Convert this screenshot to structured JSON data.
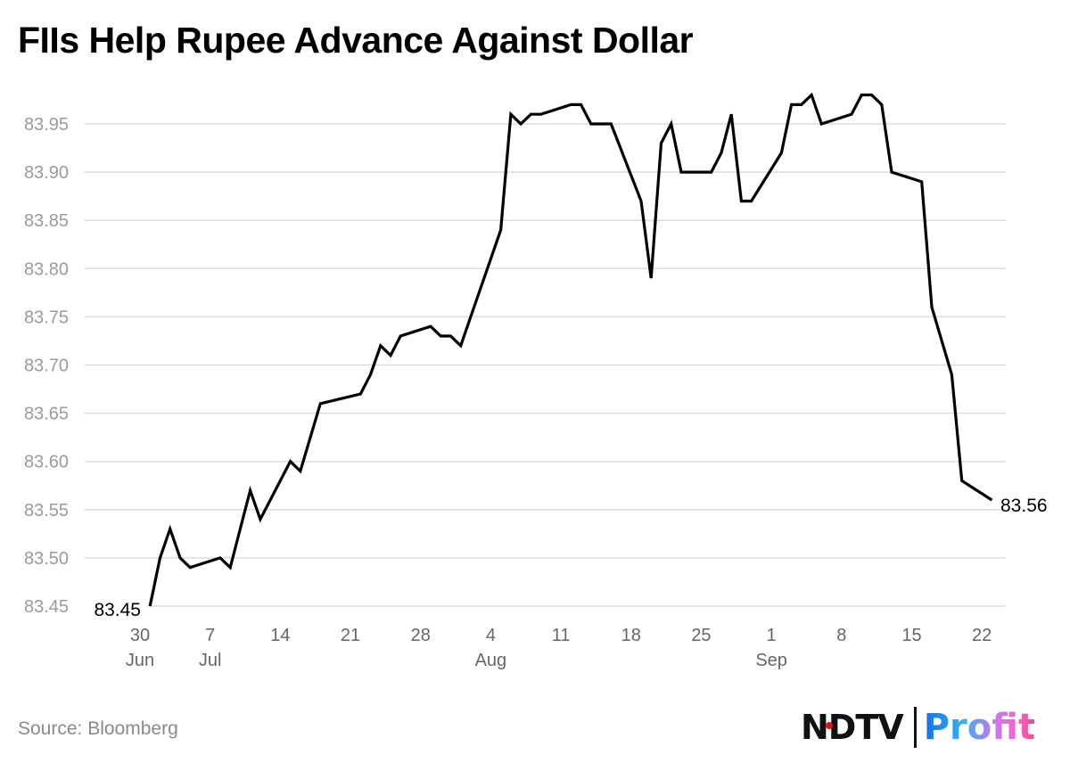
{
  "chart_data": {
    "type": "line",
    "title": "FIIs Help Rupee Advance Against Dollar",
    "source": "Source: Bloomberg",
    "xlabel": "",
    "ylabel": "",
    "ylim": [
      83.45,
      83.95
    ],
    "yticks": [
      "83.45",
      "83.50",
      "83.55",
      "83.60",
      "83.65",
      "83.70",
      "83.75",
      "83.80",
      "83.85",
      "83.90",
      "83.95"
    ],
    "xticks": [
      {
        "date": "2024-06-30",
        "label": "30",
        "sub": "Jun"
      },
      {
        "date": "2024-07-07",
        "label": "7",
        "sub": "Jul"
      },
      {
        "date": "2024-07-14",
        "label": "14",
        "sub": ""
      },
      {
        "date": "2024-07-21",
        "label": "21",
        "sub": ""
      },
      {
        "date": "2024-07-28",
        "label": "28",
        "sub": ""
      },
      {
        "date": "2024-08-04",
        "label": "4",
        "sub": "Aug"
      },
      {
        "date": "2024-08-11",
        "label": "11",
        "sub": ""
      },
      {
        "date": "2024-08-18",
        "label": "18",
        "sub": ""
      },
      {
        "date": "2024-08-25",
        "label": "25",
        "sub": ""
      },
      {
        "date": "2024-09-01",
        "label": "1",
        "sub": "Sep"
      },
      {
        "date": "2024-09-08",
        "label": "8",
        "sub": ""
      },
      {
        "date": "2024-09-15",
        "label": "15",
        "sub": ""
      },
      {
        "date": "2024-09-22",
        "label": "22",
        "sub": ""
      }
    ],
    "grid": true,
    "line_color": "#000000",
    "start_label": "83.45",
    "end_label": "83.56",
    "series": [
      {
        "x": [
          "2024-07-01",
          "2024-07-02",
          "2024-07-03",
          "2024-07-04",
          "2024-07-05",
          "2024-07-08",
          "2024-07-09",
          "2024-07-11",
          "2024-07-12",
          "2024-07-15",
          "2024-07-16",
          "2024-07-18",
          "2024-07-22",
          "2024-07-23",
          "2024-07-24",
          "2024-07-25",
          "2024-07-26",
          "2024-07-29",
          "2024-07-30",
          "2024-07-31",
          "2024-08-01",
          "2024-08-02",
          "2024-08-05",
          "2024-08-06",
          "2024-08-07",
          "2024-08-08",
          "2024-08-09",
          "2024-08-12",
          "2024-08-13",
          "2024-08-14",
          "2024-08-16",
          "2024-08-19",
          "2024-08-20",
          "2024-08-21",
          "2024-08-22",
          "2024-08-23",
          "2024-08-26",
          "2024-08-27",
          "2024-08-28",
          "2024-08-29",
          "2024-08-30",
          "2024-09-02",
          "2024-09-03",
          "2024-09-04",
          "2024-09-05",
          "2024-09-06",
          "2024-09-09",
          "2024-09-10",
          "2024-09-11",
          "2024-09-12",
          "2024-09-13",
          "2024-09-16",
          "2024-09-17",
          "2024-09-19",
          "2024-09-20",
          "2024-09-23"
        ],
        "values": [
          83.45,
          83.5,
          83.53,
          83.5,
          83.49,
          83.5,
          83.49,
          83.57,
          83.54,
          83.6,
          83.59,
          83.66,
          83.67,
          83.69,
          83.72,
          83.71,
          83.73,
          83.74,
          83.73,
          83.73,
          83.72,
          83.75,
          83.84,
          83.96,
          83.95,
          83.96,
          83.96,
          83.97,
          83.97,
          83.95,
          83.95,
          83.87,
          83.79,
          83.93,
          83.95,
          83.9,
          83.9,
          83.92,
          83.96,
          83.87,
          83.87,
          83.92,
          83.97,
          83.97,
          83.98,
          83.95,
          83.96,
          83.98,
          83.98,
          83.97,
          83.9,
          83.89,
          83.76,
          83.69,
          83.58,
          83.56
        ]
      }
    ]
  },
  "logo": {
    "ndtv": "NDTV",
    "profit": "Profit",
    "brand_colors": [
      "#1a6fe8",
      "#35b0f0",
      "#c876f0",
      "#ff5fc8",
      "#e04f86"
    ]
  }
}
